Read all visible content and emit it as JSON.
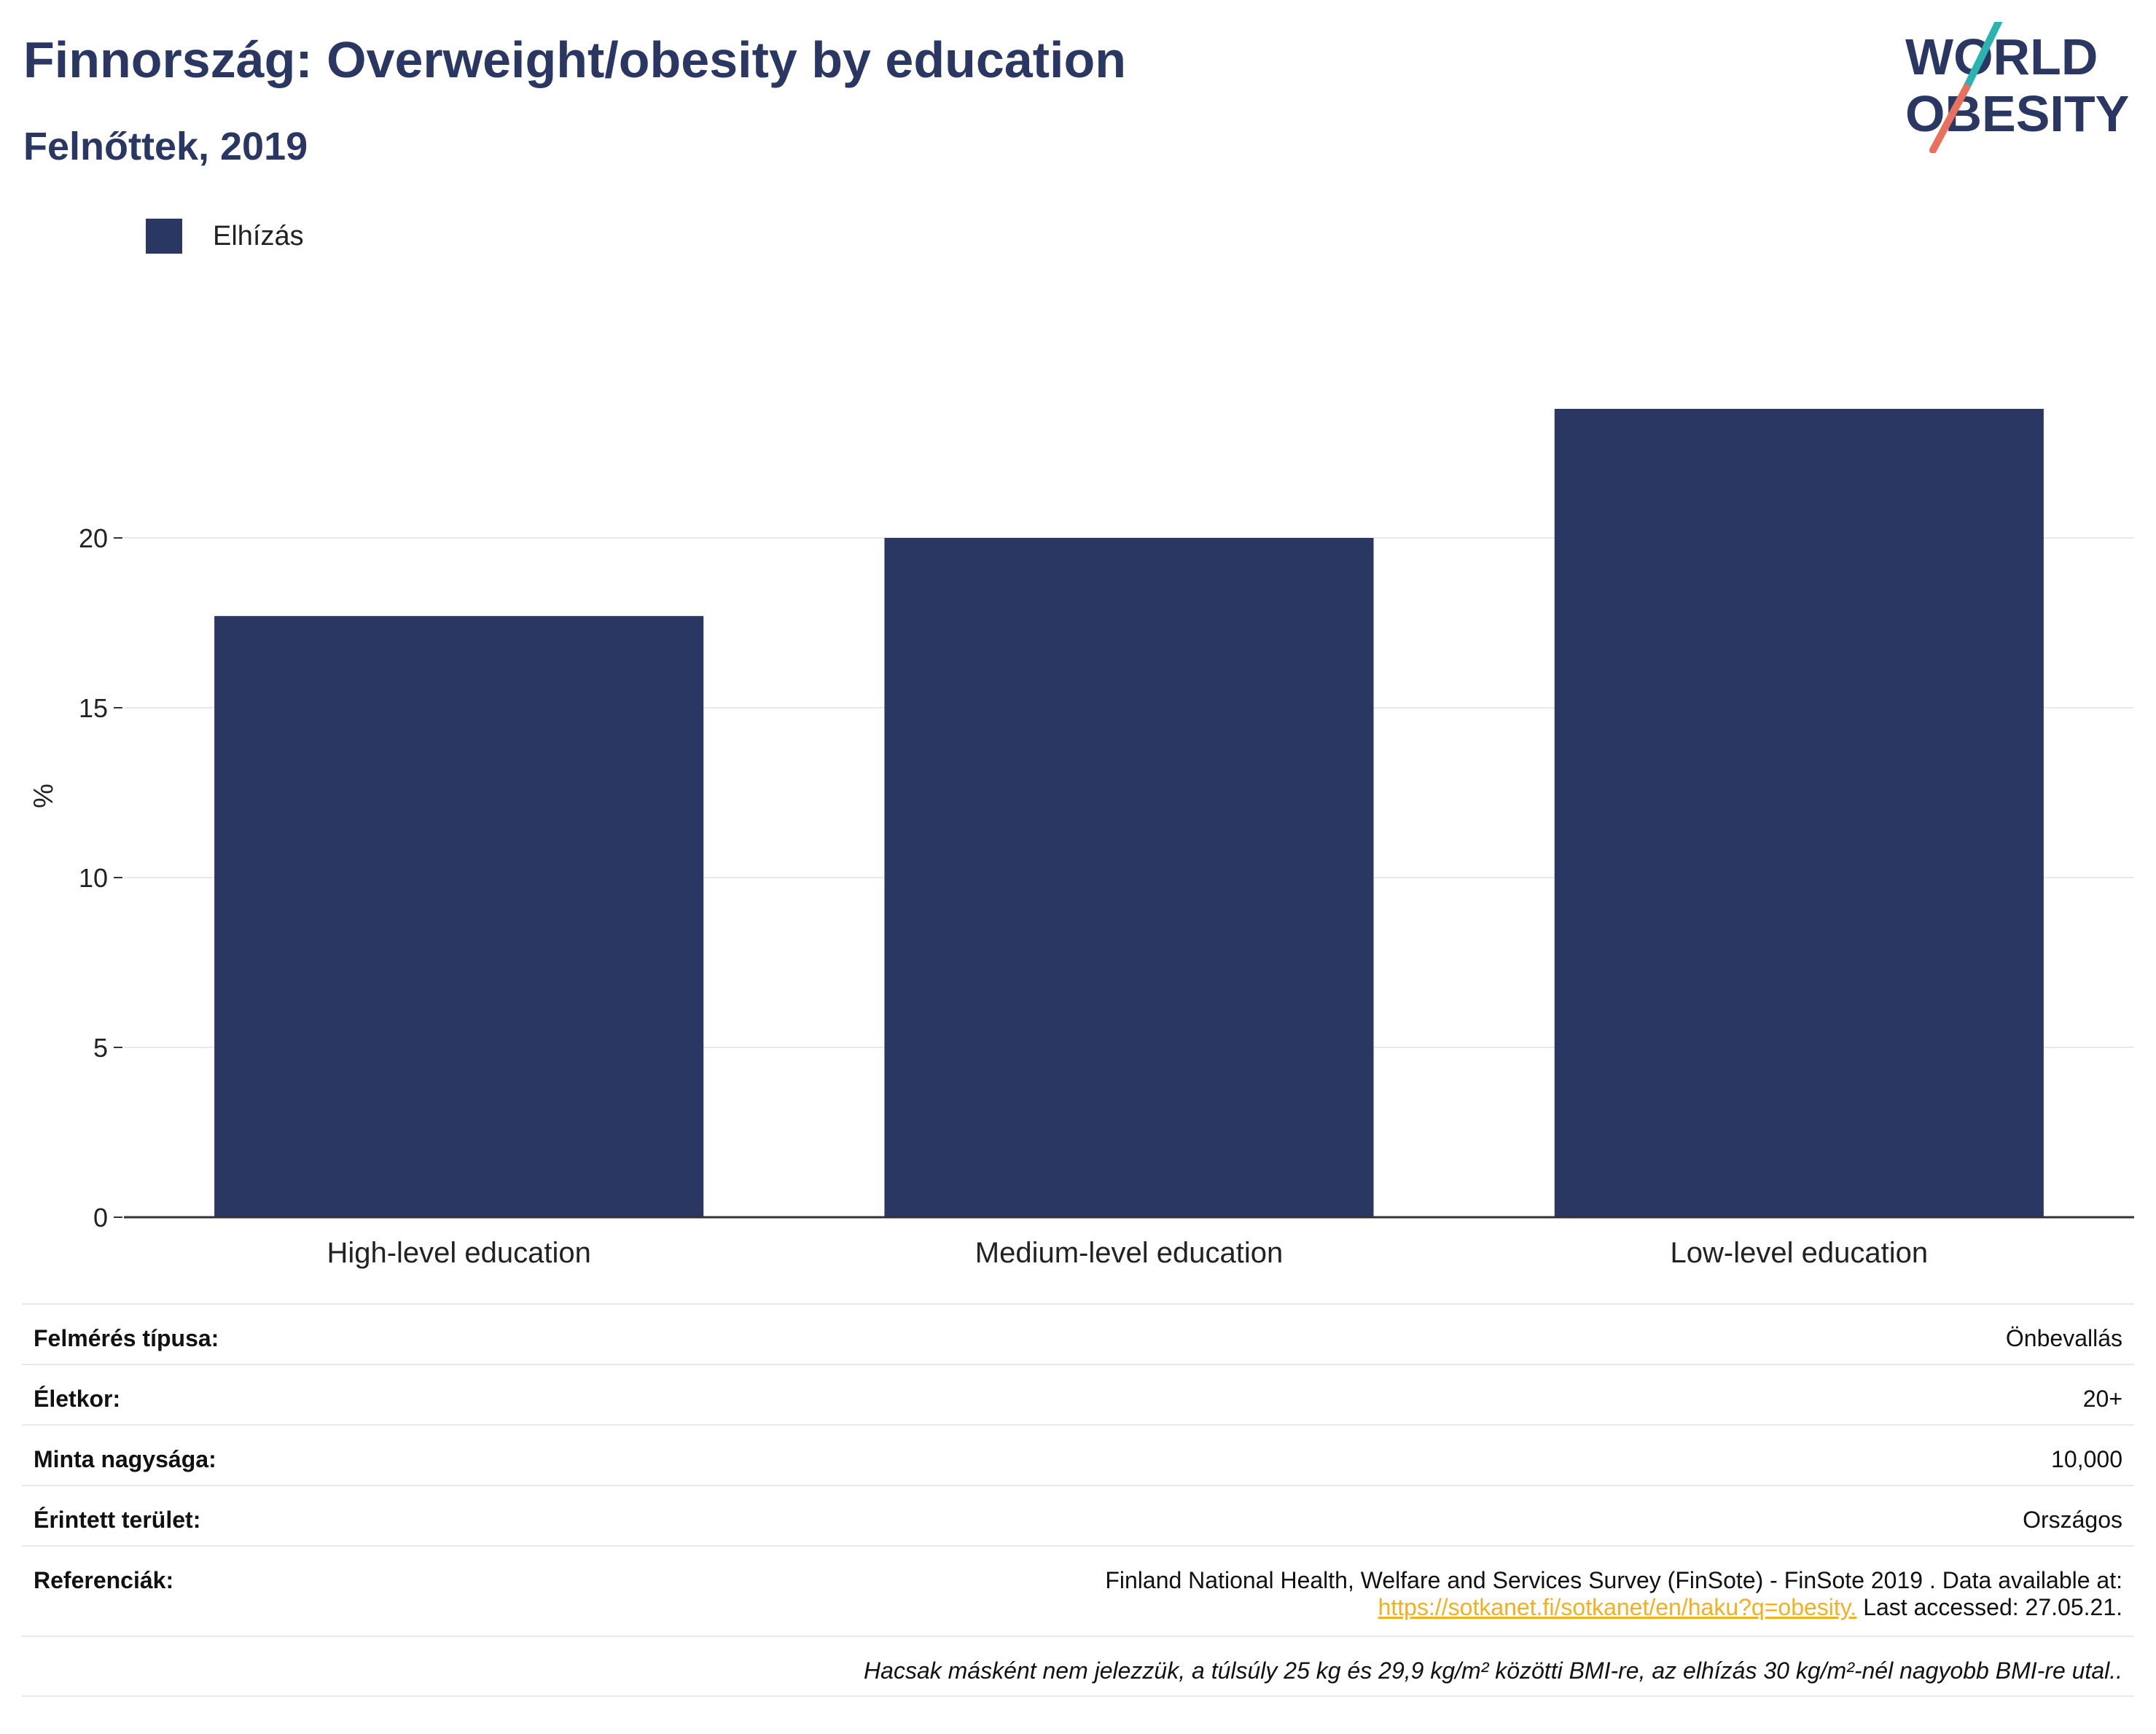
{
  "header": {
    "title": "Finnország: Overweight/obesity by education",
    "subtitle": "Felnőttek, 2019"
  },
  "logo": {
    "line1": "WORLD",
    "line2": "OBESITY",
    "colors": {
      "text": "#2b3763",
      "slash_top": "#2bb3b1",
      "slash_bottom": "#e8705f"
    }
  },
  "legend": {
    "label": "Elhízás",
    "color": "#2b3763"
  },
  "chart_data": {
    "type": "bar",
    "categories": [
      "High-level education",
      "Medium-level education",
      "Low-level education"
    ],
    "series": [
      {
        "name": "Elhízás",
        "values": [
          17.7,
          20.0,
          23.8
        ],
        "color": "#2b3763"
      }
    ],
    "title": "Finnország: Overweight/obesity by education",
    "subtitle": "Felnőttek, 2019",
    "xlabel": "",
    "ylabel": "%",
    "ylim": [
      0,
      26.5
    ],
    "yticks": [
      0,
      5,
      10,
      15,
      20
    ],
    "grid": true,
    "legend_position": "top-left"
  },
  "info": {
    "survey_type": {
      "label": "Felmérés típusa:",
      "value": "Önbevallás"
    },
    "age": {
      "label": "Életkor:",
      "value": "20+"
    },
    "sample_size": {
      "label": "Minta nagysága:",
      "value": "10,000"
    },
    "area": {
      "label": "Érintett terület:",
      "value": "Országos"
    },
    "references": {
      "label": "Referenciák:",
      "line1": "Finland National Health, Welfare and Services Survey (FinSote) - FinSote 2019 . Data available at:",
      "link": "https://sotkanet.fi/sotkanet/en/haku?q=obesity.",
      "after_link": " Last accessed: 27.05.21."
    },
    "note": "Hacsak másként nem jelezzük, a túlsúly 25 kg és 29,9 kg/m² közötti BMI-re, az elhízás 30 kg/m²-nél nagyobb BMI-re utal.."
  }
}
